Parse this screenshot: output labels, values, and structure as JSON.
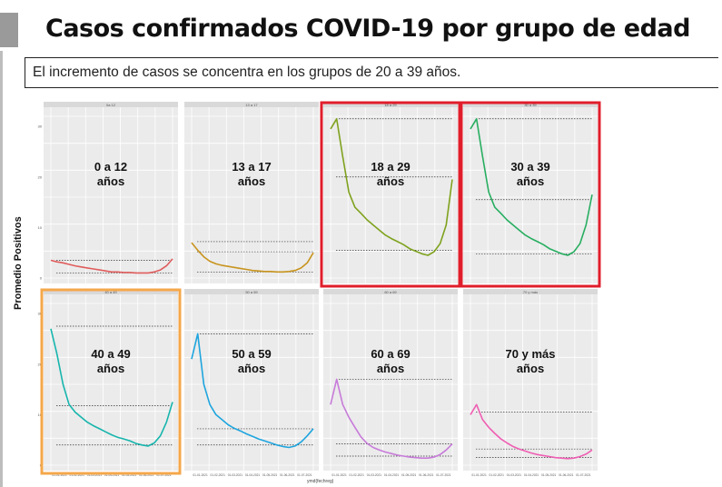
{
  "header": {
    "title": "Casos confirmados COVID-19 por grupo de edad",
    "subtitle": "El incremento de casos se concentra en los grupos de 20 a 39 años."
  },
  "chart_data": {
    "type": "line",
    "ylabel": "Promedio Positivos",
    "xlabel": "ymd(fechreg)",
    "x_ticks": [
      "01-01-2021",
      "01-02-2021",
      "01-03-2021",
      "01-04-2021",
      "01-05-2021",
      "01-06-2021",
      "01-07-2021"
    ],
    "grid": true,
    "panels": [
      {
        "overlay": "0 a 12\naños",
        "color": "#e05c5c",
        "strip": "0a 12",
        "y_ticks": [
          "0",
          "10",
          "20",
          "30"
        ],
        "ylim": [
          0,
          32
        ],
        "values": [
          3.5,
          3.2,
          3.0,
          2.7,
          2.4,
          2.2,
          2.0,
          1.8,
          1.6,
          1.4,
          1.2,
          1.2,
          1.1,
          1.1,
          1.0,
          1.0,
          1.0,
          1.2,
          1.6,
          2.4,
          3.8
        ],
        "ref_lines": [
          3.5,
          1.0
        ]
      },
      {
        "overlay": "13 a 17\naños",
        "color": "#c8941e",
        "strip": "13 a 17",
        "y_ticks": [
          "0",
          "10",
          "20",
          "30"
        ],
        "ylim": [
          0,
          32
        ],
        "values": [
          7,
          5.5,
          4.2,
          3.3,
          2.8,
          2.5,
          2.3,
          2.1,
          1.9,
          1.7,
          1.5,
          1.4,
          1.3,
          1.3,
          1.2,
          1.2,
          1.3,
          1.5,
          2.0,
          3.0,
          5.0
        ],
        "ref_lines": [
          7.2,
          5.2,
          1.2
        ]
      },
      {
        "overlay": "18 a 29\naños",
        "color": "#7ea21d",
        "strip": "18 a 29",
        "y_ticks": [
          "0",
          "10",
          "20",
          "30"
        ],
        "ylim": [
          0,
          32
        ],
        "values": [
          29.5,
          31.5,
          24,
          17,
          14,
          12.8,
          11.5,
          10.5,
          9.5,
          8.5,
          7.8,
          7.2,
          6.6,
          5.8,
          5.3,
          4.8,
          4.5,
          5.2,
          6.8,
          10.5,
          19.5
        ],
        "ref_lines": [
          31.5,
          20,
          5.5
        ]
      },
      {
        "overlay": "30 a 39\naños",
        "color": "#27ae60",
        "strip": "30 a 39",
        "y_ticks": [
          "0",
          "10",
          "20",
          "30"
        ],
        "ylim": [
          0,
          32
        ],
        "values": [
          29.5,
          31.5,
          24,
          17,
          14,
          12.8,
          11.5,
          10.5,
          9.5,
          8.5,
          7.8,
          7.2,
          6.6,
          5.8,
          5.3,
          4.8,
          4.5,
          5.2,
          6.8,
          10.5,
          16.5
        ],
        "ref_lines": [
          31.5,
          15.5,
          4.8
        ]
      },
      {
        "overlay": "40 a 49\naños",
        "color": "#16b5ad",
        "strip": "40 a 49",
        "y_ticks": [
          "0",
          "10",
          "20",
          "30"
        ],
        "ylim": [
          0,
          32
        ],
        "values": [
          27,
          22,
          16,
          12,
          10.5,
          9.5,
          8.5,
          7.8,
          7.2,
          6.6,
          6.0,
          5.5,
          5.2,
          4.8,
          4.3,
          4.0,
          3.8,
          4.4,
          5.8,
          8.5,
          12.5
        ],
        "ref_lines": [
          27.5,
          11.8,
          4.0
        ]
      },
      {
        "overlay": "50 a 59\naños",
        "color": "#1ea5de",
        "strip": "50 a 59",
        "y_ticks": [
          "0",
          "10",
          "20",
          "30"
        ],
        "ylim": [
          0,
          32
        ],
        "values": [
          21,
          26,
          16,
          12,
          10,
          9,
          8,
          7.3,
          6.8,
          6.2,
          5.7,
          5.2,
          4.8,
          4.4,
          4.0,
          3.7,
          3.5,
          3.8,
          4.6,
          5.8,
          7.2
        ],
        "ref_lines": [
          26,
          7.2,
          4.0
        ]
      },
      {
        "overlay": "60 a 69\naños",
        "color": "#c77bd9",
        "strip": "60 a 69",
        "y_ticks": [
          "0",
          "10",
          "20",
          "30"
        ],
        "ylim": [
          0,
          32
        ],
        "values": [
          12,
          17,
          12,
          9.5,
          7.5,
          5.6,
          4.3,
          3.5,
          3.0,
          2.6,
          2.3,
          2.0,
          1.8,
          1.6,
          1.5,
          1.4,
          1.4,
          1.6,
          2.1,
          3.0,
          4.2
        ],
        "ref_lines": [
          17,
          4.2,
          1.8
        ]
      },
      {
        "overlay": "70 y más\naños",
        "color": "#ef5eb3",
        "strip": "70 y más",
        "y_ticks": [
          "0",
          "10",
          "20",
          "30"
        ],
        "ylim": [
          0,
          32
        ],
        "values": [
          10,
          12,
          9,
          7.5,
          6.3,
          5.2,
          4.4,
          3.7,
          3.2,
          2.8,
          2.4,
          2.1,
          1.9,
          1.7,
          1.5,
          1.4,
          1.3,
          1.4,
          1.7,
          2.2,
          3.0
        ],
        "ref_lines": [
          10.5,
          3.2,
          1.5
        ]
      }
    ],
    "highlights": [
      {
        "panel": 2,
        "color": "#e01e2b"
      },
      {
        "panel": 3,
        "color": "#e01e2b"
      },
      {
        "panel": 4,
        "color": "#f5a74a"
      }
    ]
  }
}
